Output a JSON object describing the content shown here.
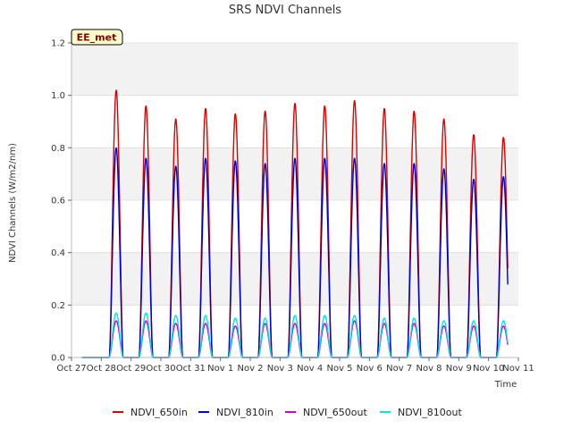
{
  "chart_data": {
    "type": "line",
    "title": "SRS NDVI Channels",
    "xlabel": "Time",
    "ylabel": "NDVI Channels (W/m2/nm)",
    "badge": "EE_met",
    "ylim": [
      0,
      1.2
    ],
    "yticks": [
      0.0,
      0.2,
      0.4,
      0.6,
      0.8,
      1.0,
      1.2
    ],
    "ytick_labels": [
      "0.0",
      "0.2",
      "0.4",
      "0.6",
      "0.8",
      "1.0",
      "1.2"
    ],
    "xlim": [
      0,
      15
    ],
    "xtick_labels": [
      "Oct 27",
      "Oct 28",
      "Oct 29",
      "Oct 30",
      "Oct 31",
      "Nov 1",
      "Nov 2",
      "Nov 3",
      "Nov 4",
      "Nov 5",
      "Nov 6",
      "Nov 7",
      "Nov 8",
      "Nov 9",
      "Nov 10",
      "Nov 11"
    ],
    "grid": "horizontal bands",
    "legend_position": "bottom",
    "days": [
      "Oct 28",
      "Oct 29",
      "Oct 30",
      "Oct 31",
      "Nov 1",
      "Nov 2",
      "Nov 3",
      "Nov 4",
      "Nov 5",
      "Nov 6",
      "Nov 7",
      "Nov 8",
      "Nov 9",
      "Nov 10"
    ],
    "series": [
      {
        "name": "NDVI_650in",
        "color": "#dd0000",
        "daily_peaks": [
          1.02,
          0.96,
          0.91,
          0.95,
          0.93,
          0.94,
          0.97,
          0.96,
          0.98,
          0.95,
          0.94,
          0.91,
          0.85,
          0.84
        ]
      },
      {
        "name": "NDVI_810in",
        "color": "#0000cc",
        "daily_peaks": [
          0.8,
          0.76,
          0.73,
          0.76,
          0.75,
          0.74,
          0.76,
          0.76,
          0.76,
          0.74,
          0.74,
          0.72,
          0.68,
          0.69
        ]
      },
      {
        "name": "NDVI_650out",
        "color": "#cc00cc",
        "daily_peaks": [
          0.14,
          0.14,
          0.13,
          0.13,
          0.12,
          0.13,
          0.13,
          0.13,
          0.14,
          0.13,
          0.13,
          0.12,
          0.12,
          0.12
        ]
      },
      {
        "name": "NDVI_810out",
        "color": "#00e5e5",
        "daily_peaks": [
          0.17,
          0.17,
          0.16,
          0.16,
          0.15,
          0.15,
          0.16,
          0.16,
          0.16,
          0.15,
          0.15,
          0.14,
          0.14,
          0.14
        ]
      }
    ]
  }
}
